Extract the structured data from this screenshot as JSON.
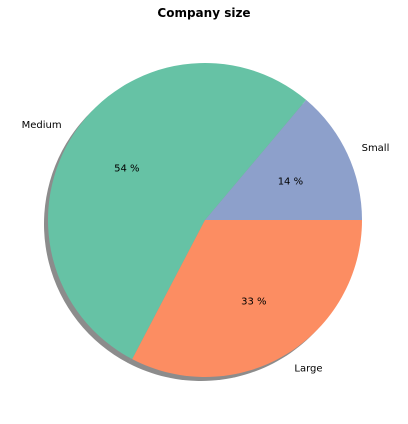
{
  "chart_data": {
    "type": "pie",
    "title": "Company size",
    "categories": [
      "Small",
      "Medium",
      "Large"
    ],
    "values": [
      14,
      54,
      33
    ],
    "labels": [
      "14 %",
      "54 %",
      "33 %"
    ],
    "colors": [
      "#8da0cb",
      "#66c2a5",
      "#fc8d62"
    ],
    "shadow": true,
    "start_angle_deg": 0,
    "direction": "counterclockwise"
  }
}
